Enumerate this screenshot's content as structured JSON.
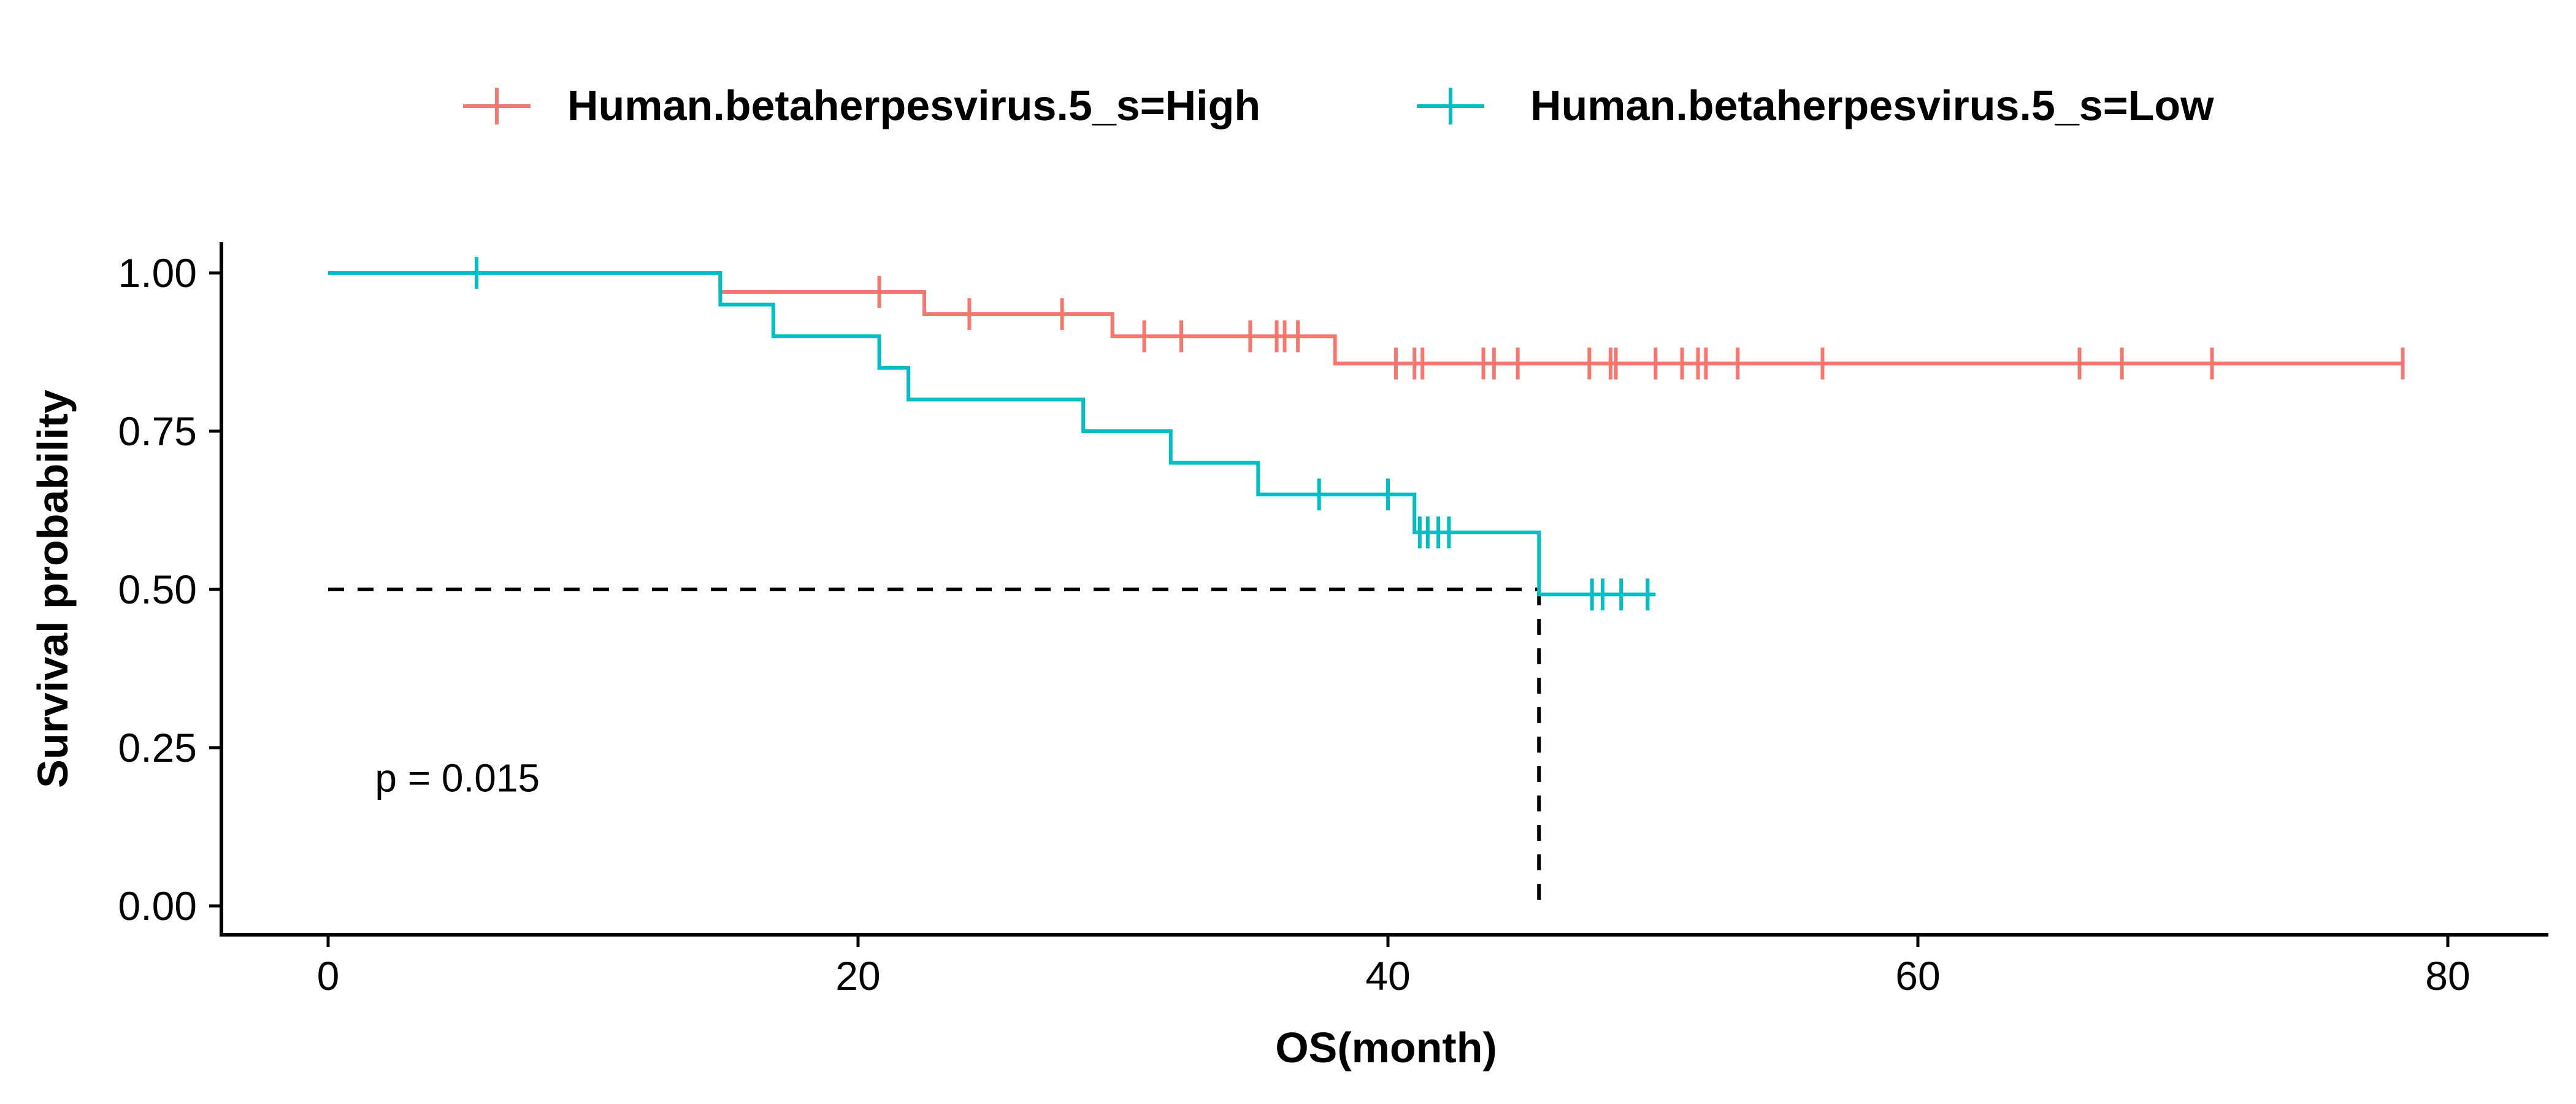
{
  "chart_data": {
    "type": "line",
    "subtype": "kaplan-meier step survival curve",
    "xlabel": "OS(month)",
    "ylabel": "Survival probability",
    "xlim": [
      -4,
      84
    ],
    "ylim": [
      -0.05,
      1.05
    ],
    "x_ticks": [
      0,
      20,
      40,
      60,
      80
    ],
    "y_ticks": [
      0.0,
      0.25,
      0.5,
      0.75,
      1.0
    ],
    "x_tick_labels": [
      "0",
      "20",
      "40",
      "60",
      "80"
    ],
    "y_tick_labels": [
      "0.00",
      "0.25",
      "0.50",
      "0.75",
      "1.00"
    ],
    "grid": false,
    "legend_position": "top",
    "annotation": "p = 0.015",
    "annotation_position": {
      "x": 2,
      "y": 0.2
    },
    "median_line": {
      "x": 45.7,
      "y": 0.5,
      "style": "dashed",
      "color": "#000000"
    },
    "series": [
      {
        "name": "Human.betaherpesvirus.5_s=High",
        "color": "#F8766D",
        "steps": [
          [
            0,
            1.0
          ],
          [
            14.8,
            0.97
          ],
          [
            22.5,
            0.935
          ],
          [
            29.6,
            0.9
          ],
          [
            38.0,
            0.857
          ],
          [
            78.3,
            0.857
          ]
        ],
        "censored": [
          [
            20.8,
            0.97
          ],
          [
            24.2,
            0.935
          ],
          [
            27.7,
            0.935
          ],
          [
            30.8,
            0.9
          ],
          [
            32.2,
            0.9
          ],
          [
            34.8,
            0.9
          ],
          [
            35.8,
            0.9
          ],
          [
            36.1,
            0.9
          ],
          [
            36.6,
            0.9
          ],
          [
            40.3,
            0.857
          ],
          [
            41.0,
            0.857
          ],
          [
            41.3,
            0.857
          ],
          [
            43.6,
            0.857
          ],
          [
            44.0,
            0.857
          ],
          [
            44.9,
            0.857
          ],
          [
            47.6,
            0.857
          ],
          [
            48.4,
            0.857
          ],
          [
            48.6,
            0.857
          ],
          [
            50.1,
            0.857
          ],
          [
            51.1,
            0.857
          ],
          [
            51.7,
            0.857
          ],
          [
            52.0,
            0.857
          ],
          [
            53.2,
            0.857
          ],
          [
            56.4,
            0.857
          ],
          [
            66.1,
            0.857
          ],
          [
            67.7,
            0.857
          ],
          [
            71.1,
            0.857
          ],
          [
            78.3,
            0.857
          ]
        ]
      },
      {
        "name": "Human.betaherpesvirus.5_s=Low",
        "color": "#00BFC4",
        "steps": [
          [
            0,
            1.0
          ],
          [
            14.8,
            0.95
          ],
          [
            16.8,
            0.9
          ],
          [
            20.8,
            0.85
          ],
          [
            21.9,
            0.8
          ],
          [
            28.5,
            0.75
          ],
          [
            31.8,
            0.7
          ],
          [
            35.1,
            0.65
          ],
          [
            41.0,
            0.59
          ],
          [
            45.7,
            0.492
          ],
          [
            50.1,
            0.492
          ]
        ],
        "censored": [
          [
            5.6,
            1.0
          ],
          [
            37.4,
            0.65
          ],
          [
            40.0,
            0.65
          ],
          [
            41.2,
            0.59
          ],
          [
            41.5,
            0.59
          ],
          [
            41.9,
            0.59
          ],
          [
            42.3,
            0.59
          ],
          [
            47.7,
            0.492
          ],
          [
            48.1,
            0.492
          ],
          [
            48.8,
            0.492
          ],
          [
            49.8,
            0.492
          ]
        ]
      }
    ]
  }
}
